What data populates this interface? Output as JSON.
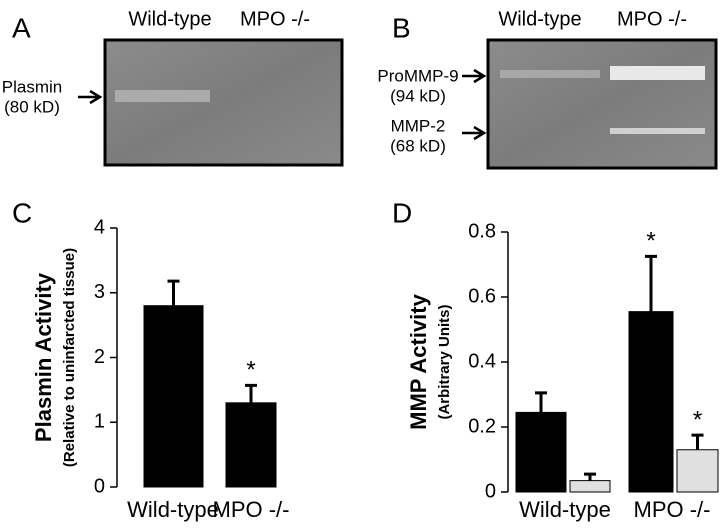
{
  "gels": [
    {
      "panel_label": "A",
      "lanes": [
        "Wild-type",
        "MPO -/-"
      ],
      "bands": [
        {
          "label": "Plasmin",
          "size": "(80 kD)"
        }
      ]
    },
    {
      "panel_label": "B",
      "lanes": [
        "Wild-type",
        "MPO -/-"
      ],
      "bands": [
        {
          "label": "ProMMP-9",
          "size": "(94 kD)"
        },
        {
          "label": "MMP-2",
          "size": "(68 kD)"
        }
      ]
    }
  ],
  "chart_data": [
    {
      "type": "bar",
      "panel_label": "C",
      "y_label": "Plasmin Activity",
      "y_sublabel": "(Relative to uninfarcted tissue)",
      "categories": [
        "Wild-type",
        "MPO -/-"
      ],
      "series": [
        {
          "color": "#000000",
          "values": [
            2.8,
            1.3
          ],
          "errors": [
            0.38,
            0.27
          ],
          "significance": [
            null,
            "*"
          ]
        }
      ],
      "ylim": [
        0,
        4
      ],
      "yticks": [
        0,
        1,
        2,
        3,
        4
      ]
    },
    {
      "type": "bar",
      "panel_label": "D",
      "y_label": "MMP Activity",
      "y_sublabel": "(Arbitrary Units)",
      "categories": [
        "Wild-type",
        "MPO -/-"
      ],
      "series": [
        {
          "color": "#000000",
          "values": [
            0.245,
            0.555
          ],
          "errors": [
            0.06,
            0.17
          ],
          "significance": [
            null,
            "*"
          ]
        },
        {
          "color": "#e0e0e0",
          "values": [
            0.035,
            0.13
          ],
          "errors": [
            0.02,
            0.045
          ],
          "significance": [
            null,
            "*"
          ]
        }
      ],
      "ylim": [
        0,
        0.8
      ],
      "yticks": [
        0,
        0.2,
        0.4,
        0.6,
        0.8
      ]
    }
  ]
}
